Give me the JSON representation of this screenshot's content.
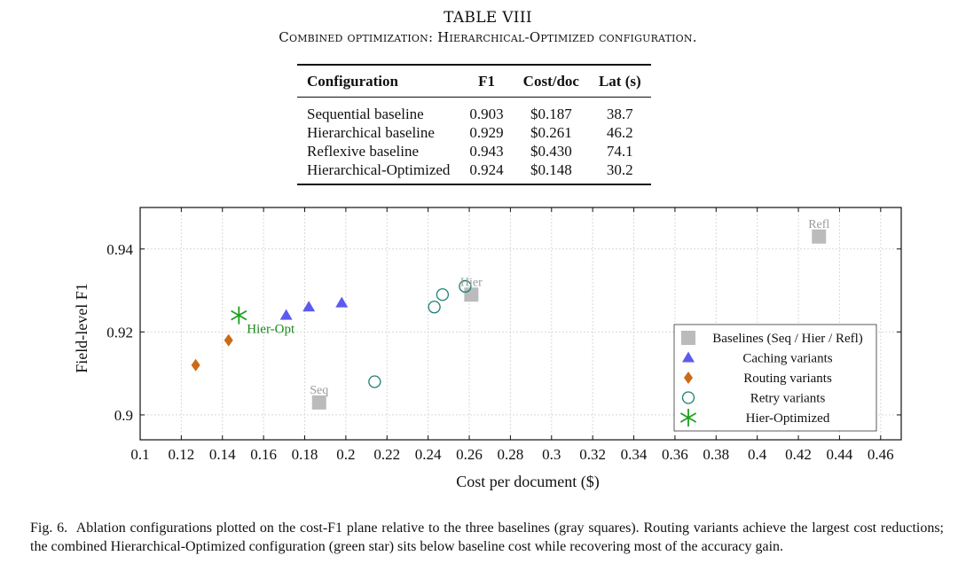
{
  "table": {
    "number": "TABLE VIII",
    "title": "Combined optimization: Hierarchical-Optimized configuration.",
    "headers": [
      "Configuration",
      "F1",
      "Cost/doc",
      "Lat (s)"
    ],
    "rows": [
      [
        "Sequential baseline",
        "0.903",
        "$0.187",
        "38.7"
      ],
      [
        "Hierarchical baseline",
        "0.929",
        "$0.261",
        "46.2"
      ],
      [
        "Reflexive baseline",
        "0.943",
        "$0.430",
        "74.1"
      ],
      [
        "Hierarchical-Optimized",
        "0.924",
        "$0.148",
        "30.2"
      ]
    ]
  },
  "chart_data": {
    "type": "scatter",
    "xlabel": "Cost per document ($)",
    "ylabel": "Field-level F1",
    "xlim": [
      0.1,
      0.47
    ],
    "ylim": [
      0.894,
      0.95
    ],
    "xticks": [
      "0.1",
      "0.12",
      "0.14",
      "0.16",
      "0.18",
      "0.2",
      "0.22",
      "0.24",
      "0.26",
      "0.28",
      "0.3",
      "0.32",
      "0.34",
      "0.36",
      "0.38",
      "0.4",
      "0.42",
      "0.44",
      "0.46"
    ],
    "yticks": [
      "0.9",
      "0.92",
      "0.94"
    ],
    "grid": true,
    "legend_position": "right",
    "series": [
      {
        "name": "Baselines (Seq / Hier / Refl)",
        "marker": "square",
        "color": "#bbbbbb",
        "points": [
          {
            "x": 0.187,
            "y": 0.903,
            "label": "Seq"
          },
          {
            "x": 0.261,
            "y": 0.929,
            "label": "Hier"
          },
          {
            "x": 0.43,
            "y": 0.943,
            "label": "Refl"
          }
        ]
      },
      {
        "name": "Caching variants",
        "marker": "triangle",
        "color": "#5b5bf0",
        "points": [
          {
            "x": 0.171,
            "y": 0.924
          },
          {
            "x": 0.182,
            "y": 0.926
          },
          {
            "x": 0.198,
            "y": 0.927
          }
        ]
      },
      {
        "name": "Routing variants",
        "marker": "diamond",
        "color": "#cc6a16",
        "points": [
          {
            "x": 0.127,
            "y": 0.912
          },
          {
            "x": 0.143,
            "y": 0.918
          }
        ]
      },
      {
        "name": "Retry variants",
        "marker": "circle",
        "color": "#1a7f72",
        "points": [
          {
            "x": 0.214,
            "y": 0.908
          },
          {
            "x": 0.243,
            "y": 0.926
          },
          {
            "x": 0.247,
            "y": 0.929
          },
          {
            "x": 0.258,
            "y": 0.931
          }
        ]
      },
      {
        "name": "Hier-Optimized",
        "marker": "star",
        "color": "#1ca01c",
        "points": [
          {
            "x": 0.148,
            "y": 0.924,
            "label": "Hier-Opt"
          }
        ]
      }
    ]
  },
  "caption": {
    "label": "Fig. 6.",
    "text": "Ablation configurations plotted on the cost-F1 plane relative to the three baselines (gray squares). Routing variants achieve the largest cost reductions; the combined Hierarchical-Optimized configuration (green star) sits below baseline cost while recovering most of the accuracy gain."
  }
}
